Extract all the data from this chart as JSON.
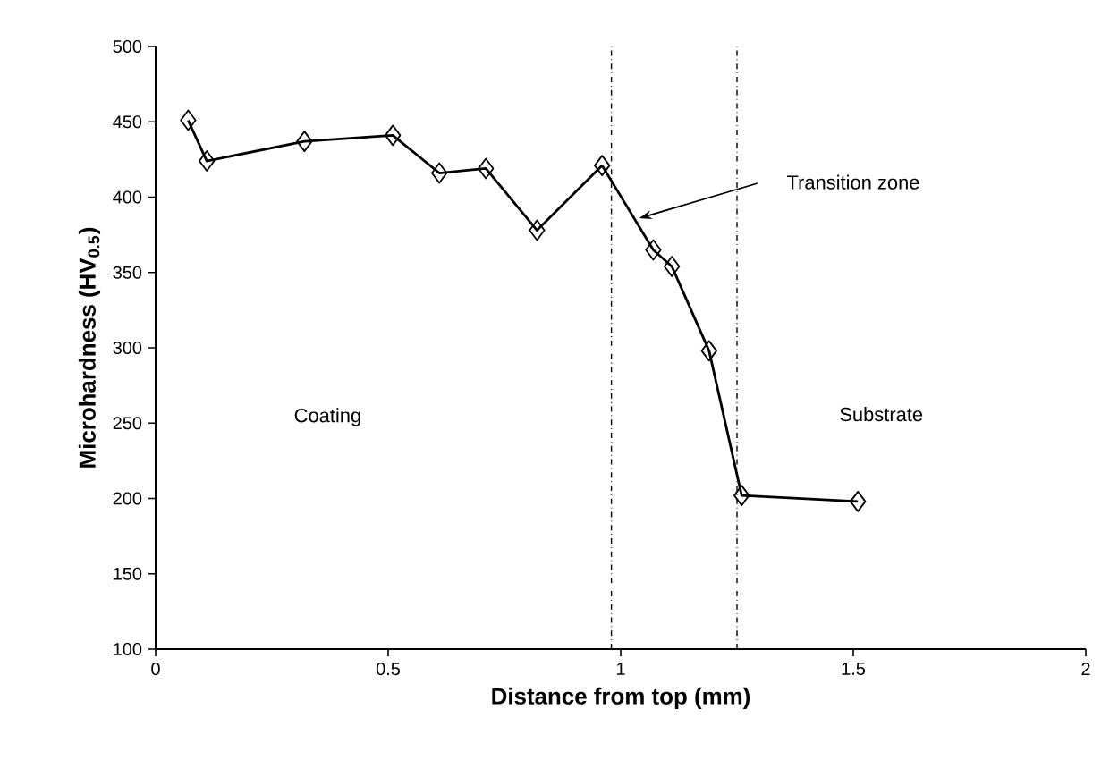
{
  "chart_data": {
    "type": "line",
    "xlabel": "Distance from top (mm)",
    "ylabel": "Microhardness (HV$_{0.5}$)",
    "x": [
      0.07,
      0.11,
      0.32,
      0.51,
      0.61,
      0.71,
      0.82,
      0.96,
      1.07,
      1.11,
      1.19,
      1.26,
      1.51
    ],
    "series": [
      {
        "color": "#000000",
        "values": [
          451,
          424,
          437,
          441,
          416,
          419,
          378,
          421,
          365,
          354,
          298,
          202,
          198
        ]
      }
    ],
    "xlim": [
      0,
      2
    ],
    "xticks": [
      0,
      0.5,
      1,
      1.5,
      2
    ],
    "ylim": [
      100,
      500
    ],
    "yticks": [
      100,
      150,
      200,
      250,
      300,
      350,
      400,
      450,
      500
    ],
    "marker": "diamond",
    "line_style": "solid",
    "grid": false,
    "ref_lines": [
      {
        "axis": "x",
        "value": 0.98,
        "color": "#000000",
        "line_style": "dashdotted"
      },
      {
        "axis": "x",
        "value": 1.25,
        "color": "#000000",
        "line_style": "dashdotted"
      }
    ],
    "annotations": [
      "Coating",
      "Substrate",
      "Transition zone"
    ]
  }
}
